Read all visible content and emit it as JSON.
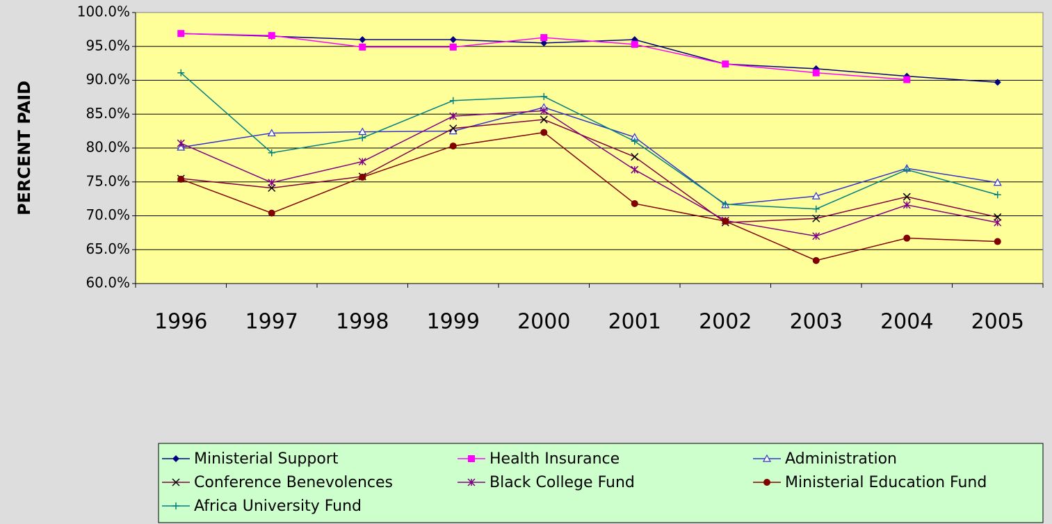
{
  "chart_data": {
    "type": "line",
    "y_label": "PERCENT PAID",
    "categories": [
      "1996",
      "1997",
      "1998",
      "1999",
      "2000",
      "2001",
      "2002",
      "2003",
      "2004",
      "2005"
    ],
    "ylim": [
      60,
      100
    ],
    "yticks": [
      {
        "value": 60,
        "label": "60.0%"
      },
      {
        "value": 65,
        "label": "65.0%"
      },
      {
        "value": 70,
        "label": "70.0%"
      },
      {
        "value": 75,
        "label": "75.0%"
      },
      {
        "value": 80,
        "label": "80.0%"
      },
      {
        "value": 85,
        "label": "85.0%"
      },
      {
        "value": 90,
        "label": "90.0%"
      },
      {
        "value": 95,
        "label": "95.0%"
      },
      {
        "value": 100,
        "label": "100.0%"
      }
    ],
    "grid": true,
    "legend": "bottom",
    "series": [
      {
        "name": "Ministerial Support",
        "color": "#000080",
        "marker": "diamond",
        "values": [
          96.9,
          96.5,
          96.0,
          96.0,
          95.5,
          96.0,
          92.4,
          91.7,
          90.6,
          89.7
        ]
      },
      {
        "name": "Health Insurance",
        "color": "#ff00ff",
        "marker": "square",
        "values": [
          96.9,
          96.6,
          94.9,
          94.9,
          96.3,
          95.3,
          92.4,
          91.1,
          90.1,
          null
        ]
      },
      {
        "name": "Administration",
        "color": "#3333cc",
        "marker": "triangle",
        "values": [
          80.1,
          82.2,
          82.4,
          82.5,
          86.0,
          81.6,
          71.6,
          72.9,
          77.0,
          74.9
        ]
      },
      {
        "name": "Conference Benevolences",
        "color": "#800040",
        "marker": "x",
        "values": [
          75.5,
          74.1,
          75.8,
          82.9,
          84.2,
          78.7,
          69.0,
          69.6,
          72.8,
          69.8
        ]
      },
      {
        "name": "Black College Fund",
        "color": "#800080",
        "marker": "star",
        "values": [
          80.7,
          74.9,
          78.0,
          84.7,
          85.5,
          76.8,
          69.3,
          67.0,
          71.6,
          69.0
        ]
      },
      {
        "name": "Ministerial Education Fund",
        "color": "#800000",
        "marker": "circle",
        "values": [
          75.4,
          70.4,
          75.7,
          80.3,
          82.3,
          71.8,
          69.2,
          63.4,
          66.7,
          66.2
        ]
      },
      {
        "name": "Africa University Fund",
        "color": "#008080",
        "marker": "plus",
        "values": [
          91.1,
          79.3,
          81.5,
          87.0,
          87.6,
          81.0,
          71.7,
          71.0,
          76.8,
          73.1
        ]
      }
    ]
  }
}
